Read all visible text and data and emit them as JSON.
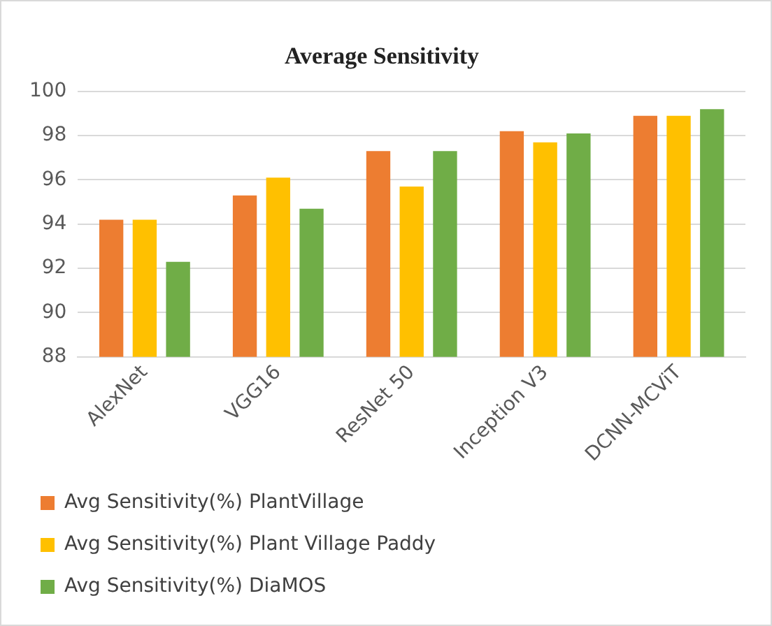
{
  "chart_data": {
    "type": "bar",
    "title": "Average Sensitivity",
    "categories": [
      "AlexNet",
      "VGG16",
      "ResNet 50",
      "Inception V3",
      "DCNN-MCViT"
    ],
    "series": [
      {
        "name": "Avg Sensitivity(%) PlantVillage",
        "color": "#ed7d31",
        "values": [
          94.2,
          95.3,
          97.3,
          98.2,
          98.9
        ]
      },
      {
        "name": "Avg Sensitivity(%) Plant Village Paddy",
        "color": "#ffc000",
        "values": [
          94.2,
          96.1,
          95.7,
          97.7,
          98.9
        ]
      },
      {
        "name": "Avg Sensitivity(%) DiaMOS",
        "color": "#70ad47",
        "values": [
          92.3,
          94.7,
          97.3,
          98.1,
          99.2
        ]
      }
    ],
    "ylim": [
      88,
      100
    ],
    "yticks": [
      88,
      90,
      92,
      94,
      96,
      98,
      100
    ],
    "grid": "y",
    "legend": "bottom"
  }
}
